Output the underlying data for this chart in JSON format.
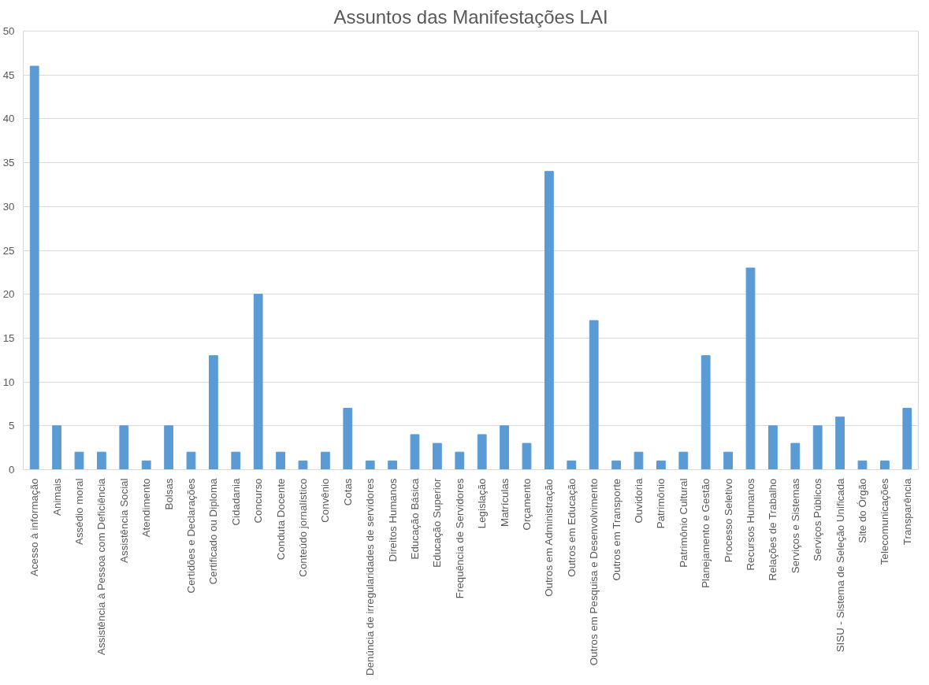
{
  "chart_data": {
    "type": "bar",
    "title": "Assuntos das Manifestações LAI",
    "categories": [
      "Acesso à informação",
      "Animais",
      "Assédio moral",
      "Assistência à Pessoa com Deficiência",
      "Assistência Social",
      "Atendimento",
      "Bolsas",
      "Certidões e Declarações",
      "Certificado ou Diploma",
      "Cidadania",
      "Concurso",
      "Conduta Docente",
      "Conteúdo jornalístico",
      "Convênio",
      "Cotas",
      "Denúncia de irregularidades de servidores",
      "Direitos Humanos",
      "Educação Básica",
      "Educação Superior",
      "Frequência de Servidores",
      "Legislação",
      "Matrículas",
      "Orçamento",
      "Outros em Administração",
      "Outros em Educação",
      "Outros em Pesquisa e Desenvolvimento",
      "Outros em Transporte",
      "Ouvidoria",
      "Patrimônio",
      "Patrimônio Cultural",
      "Planejamento e Gestão",
      "Processo Seletivo",
      "Recursos Humanos",
      "Relações de Trabalho",
      "Serviços e Sistemas",
      "Serviços Públicos",
      "SISU - Sistema de Seleção Unificada",
      "Site do Órgão",
      "Telecomunicações",
      "Transparência"
    ],
    "values": [
      46,
      5,
      2,
      2,
      5,
      1,
      5,
      2,
      13,
      2,
      20,
      2,
      1,
      2,
      7,
      1,
      1,
      4,
      3,
      2,
      4,
      5,
      3,
      34,
      1,
      17,
      1,
      2,
      1,
      2,
      13,
      2,
      23,
      5,
      3,
      5,
      6,
      1,
      1,
      7
    ],
    "color": "#5b9bd5",
    "ylim": [
      0,
      50
    ],
    "yticks": [
      0,
      5,
      10,
      15,
      20,
      25,
      30,
      35,
      40,
      45,
      50
    ],
    "grid": "y"
  }
}
